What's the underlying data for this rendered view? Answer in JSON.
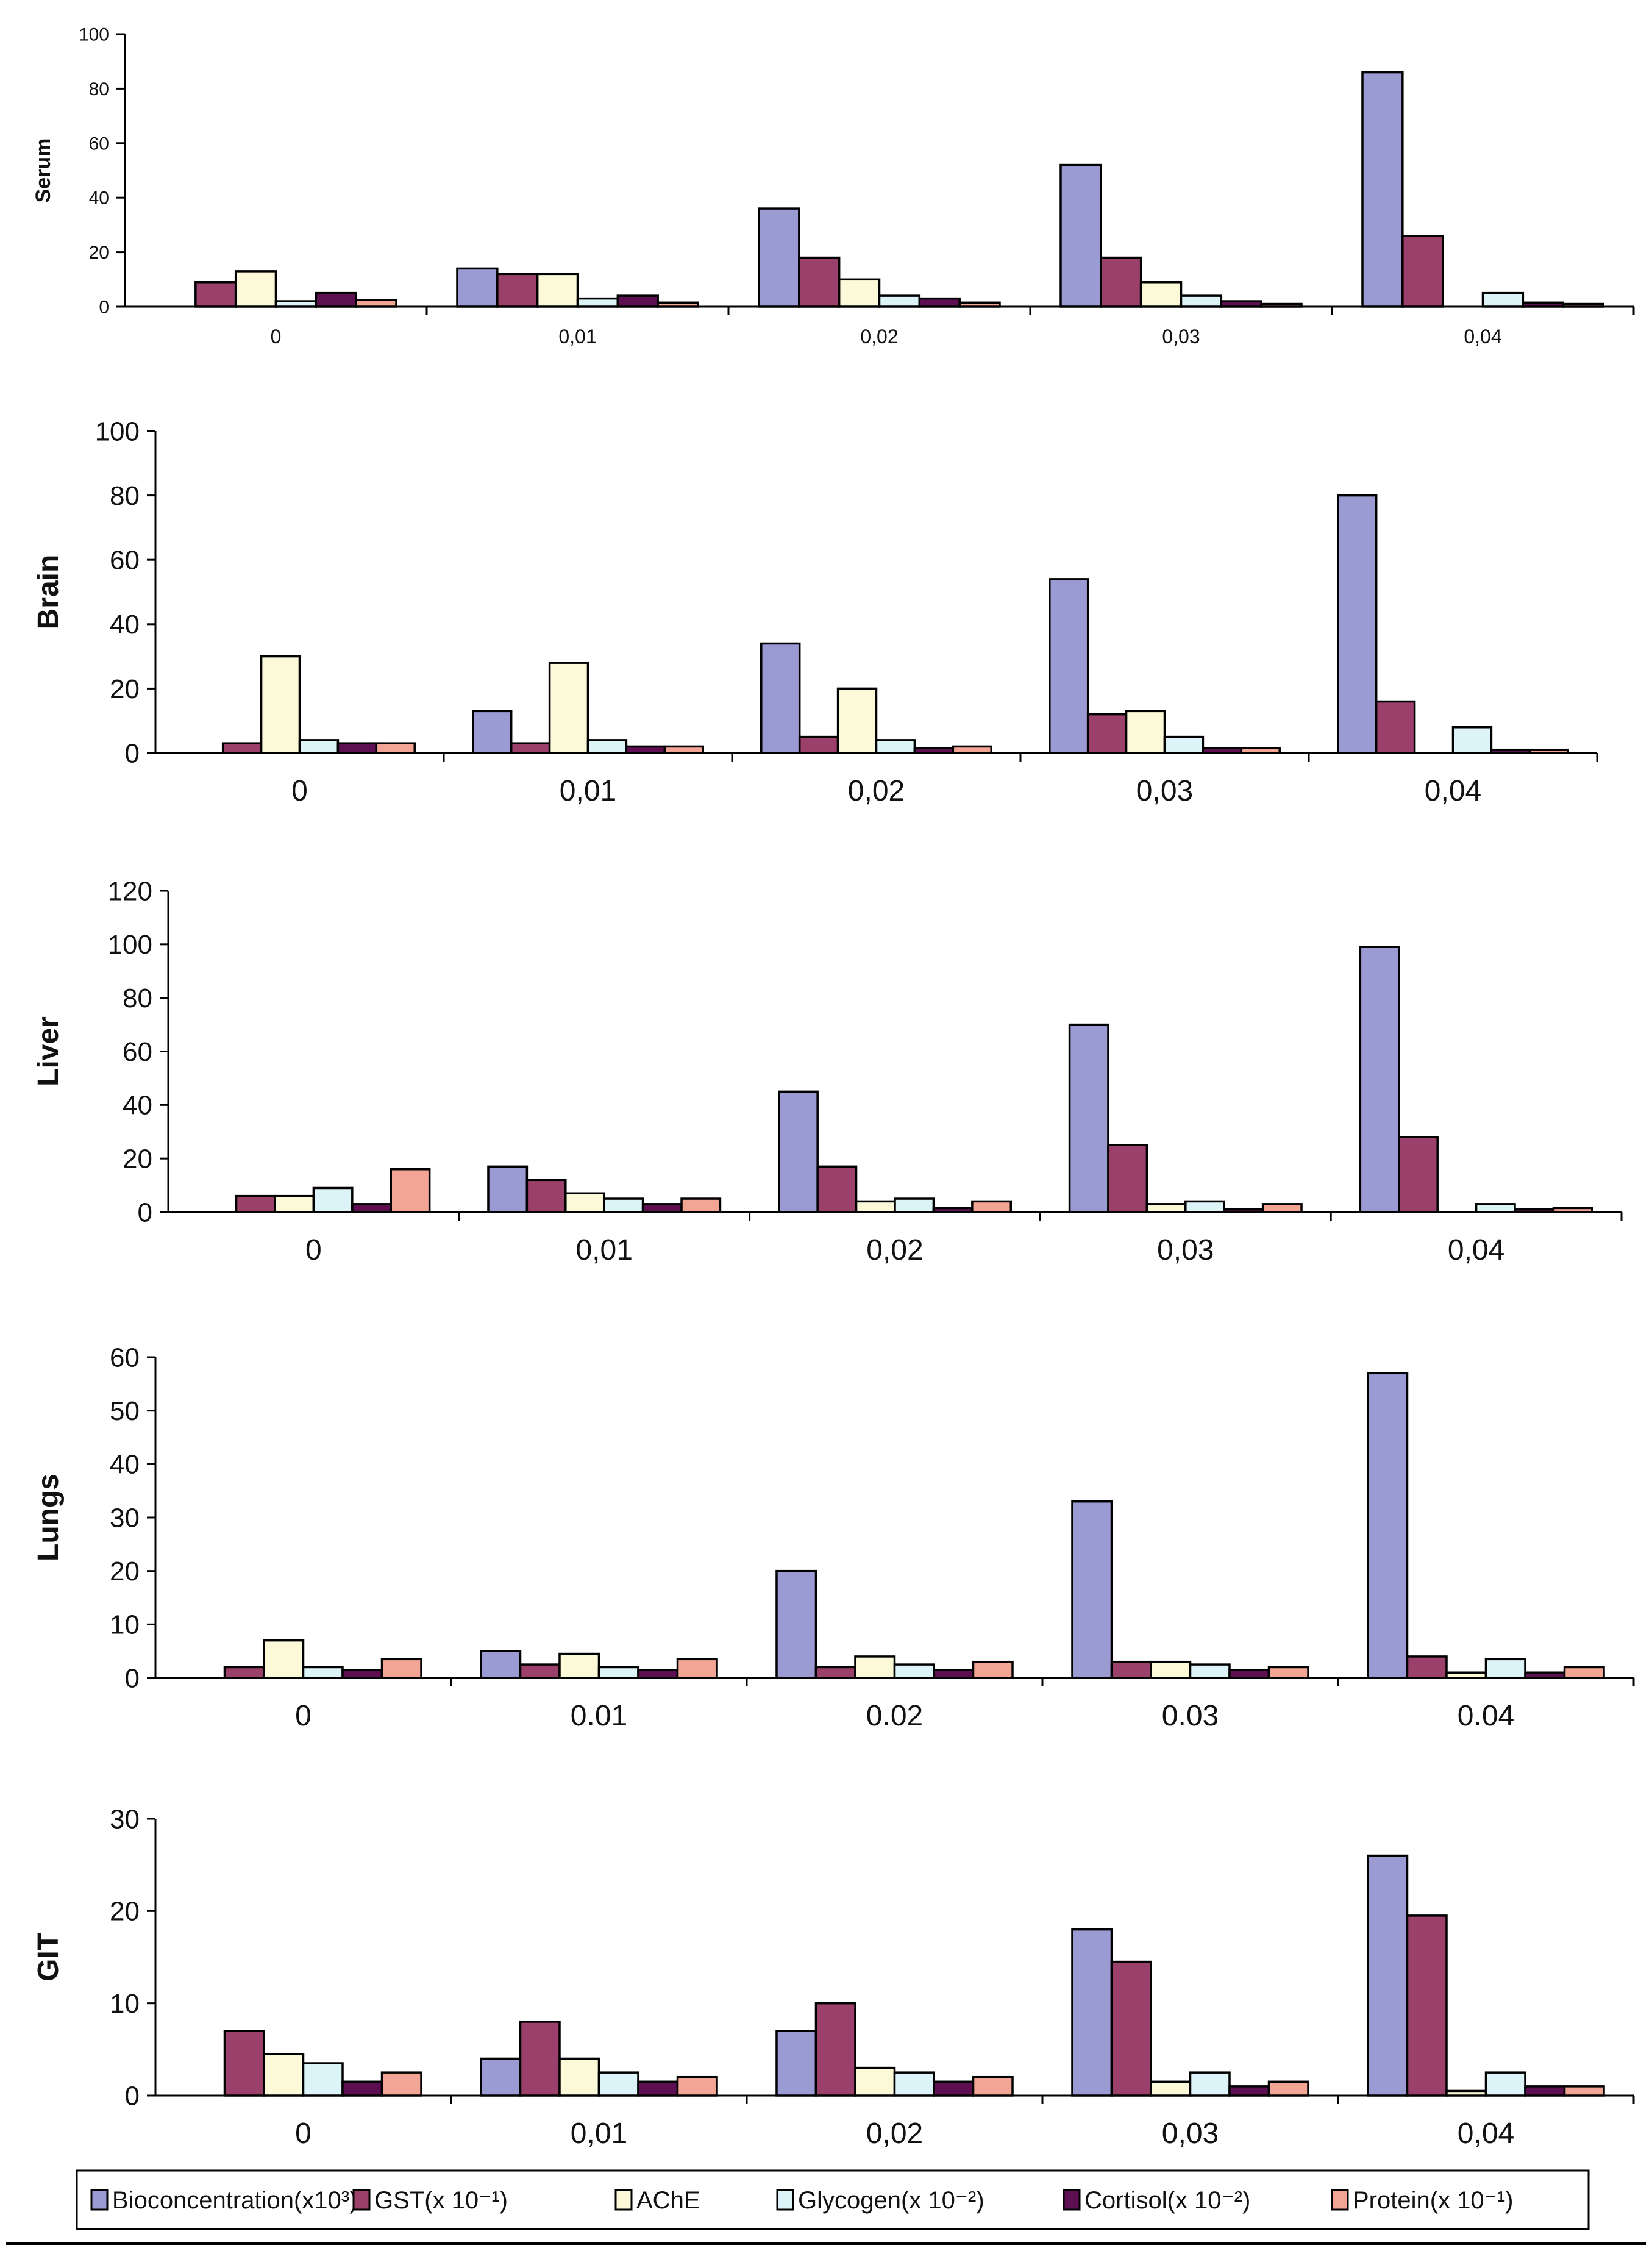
{
  "legend": [
    {
      "key": "bio",
      "label": "Bioconcentration(x10³)",
      "color": "#9a9bd3"
    },
    {
      "key": "gst",
      "label": "GST(x 10⁻¹)",
      "color": "#9b3f6b"
    },
    {
      "key": "ache",
      "label": "AChE",
      "color": "#fbf9d7"
    },
    {
      "key": "glyc",
      "label": "Glycogen(x 10⁻²)",
      "color": "#dcf3f8"
    },
    {
      "key": "cort",
      "label": "Cortisol(x 10⁻²)",
      "color": "#5e0f52"
    },
    {
      "key": "prot",
      "label": "Protein(x 10⁻¹)",
      "color": "#f3a595"
    }
  ],
  "chart_data": [
    {
      "type": "bar",
      "ylabel": "Serum",
      "categories": [
        "0",
        "0,01",
        "0,02",
        "0,03",
        "0,04"
      ],
      "yticks": [
        "0",
        "20",
        "40",
        "60",
        "80",
        "100"
      ],
      "ylim": [
        0,
        100
      ],
      "series": [
        {
          "name": "Bioconcentration(x10³)",
          "values": [
            0,
            14,
            36,
            52,
            86
          ]
        },
        {
          "name": "GST(x 10⁻¹)",
          "values": [
            9,
            12,
            18,
            18,
            26
          ]
        },
        {
          "name": "AChE",
          "values": [
            13,
            12,
            10,
            9,
            0
          ]
        },
        {
          "name": "Glycogen(x 10⁻²)",
          "values": [
            2,
            3,
            4,
            4,
            5
          ]
        },
        {
          "name": "Cortisol(x 10⁻²)",
          "values": [
            5,
            4,
            3,
            2,
            1.5
          ]
        },
        {
          "name": "Protein(x 10⁻¹)",
          "values": [
            2.5,
            1.5,
            1.5,
            1,
            1
          ]
        }
      ]
    },
    {
      "type": "bar",
      "ylabel": "Brain",
      "categories": [
        "0",
        "0,01",
        "0,02",
        "0,03",
        "0,04"
      ],
      "yticks": [
        "0",
        "20",
        "40",
        "60",
        "80",
        "100"
      ],
      "ylim": [
        0,
        100
      ],
      "series": [
        {
          "name": "Bioconcentration(x10³)",
          "values": [
            0,
            13,
            34,
            54,
            80
          ]
        },
        {
          "name": "GST(x 10⁻¹)",
          "values": [
            3,
            3,
            5,
            12,
            16
          ]
        },
        {
          "name": "AChE",
          "values": [
            30,
            28,
            20,
            13,
            0
          ]
        },
        {
          "name": "Glycogen(x 10⁻²)",
          "values": [
            4,
            4,
            4,
            5,
            8
          ]
        },
        {
          "name": "Cortisol(x 10⁻²)",
          "values": [
            3,
            2,
            1.5,
            1.5,
            1
          ]
        },
        {
          "name": "Protein(x 10⁻¹)",
          "values": [
            3,
            2,
            2,
            1.5,
            1
          ]
        }
      ]
    },
    {
      "type": "bar",
      "ylabel": "Liver",
      "categories": [
        "0",
        "0,01",
        "0,02",
        "0,03",
        "0,04"
      ],
      "yticks": [
        "0",
        "20",
        "40",
        "60",
        "80",
        "100",
        "120"
      ],
      "ylim": [
        0,
        120
      ],
      "series": [
        {
          "name": "Bioconcentration(x10³)",
          "values": [
            0,
            17,
            45,
            70,
            99
          ]
        },
        {
          "name": "GST(x 10⁻¹)",
          "values": [
            6,
            12,
            17,
            25,
            28
          ]
        },
        {
          "name": "AChE",
          "values": [
            6,
            7,
            4,
            3,
            0
          ]
        },
        {
          "name": "Glycogen(x 10⁻²)",
          "values": [
            9,
            5,
            5,
            4,
            3
          ]
        },
        {
          "name": "Cortisol(x 10⁻²)",
          "values": [
            3,
            3,
            1.5,
            1,
            1
          ]
        },
        {
          "name": "Protein(x 10⁻¹)",
          "values": [
            16,
            5,
            4,
            3,
            1.5
          ]
        }
      ]
    },
    {
      "type": "bar",
      "ylabel": "Lungs",
      "categories": [
        "0",
        "0.01",
        "0.02",
        "0.03",
        "0.04"
      ],
      "yticks": [
        "0",
        "10",
        "20",
        "30",
        "40",
        "50",
        "60"
      ],
      "ylim": [
        0,
        60
      ],
      "series": [
        {
          "name": "Bioconcentration(x10³)",
          "values": [
            0,
            5,
            20,
            33,
            57
          ]
        },
        {
          "name": "GST(x 10⁻¹)",
          "values": [
            2,
            2.5,
            2,
            3,
            4
          ]
        },
        {
          "name": "AChE",
          "values": [
            7,
            4.5,
            4,
            3,
            1
          ]
        },
        {
          "name": "Glycogen(x 10⁻²)",
          "values": [
            2,
            2,
            2.5,
            2.5,
            3.5
          ]
        },
        {
          "name": "Cortisol(x 10⁻²)",
          "values": [
            1.5,
            1.5,
            1.5,
            1.5,
            1
          ]
        },
        {
          "name": "Protein(x 10⁻¹)",
          "values": [
            3.5,
            3.5,
            3,
            2,
            2
          ]
        }
      ]
    },
    {
      "type": "bar",
      "ylabel": "GIT",
      "categories": [
        "0",
        "0,01",
        "0,02",
        "0,03",
        "0,04"
      ],
      "yticks": [
        "0",
        "10",
        "20",
        "30"
      ],
      "ylim": [
        0,
        30
      ],
      "series": [
        {
          "name": "Bioconcentration(x10³)",
          "values": [
            0,
            4,
            7,
            18,
            26
          ]
        },
        {
          "name": "GST(x 10⁻¹)",
          "values": [
            7,
            8,
            10,
            14.5,
            19.5
          ]
        },
        {
          "name": "AChE",
          "values": [
            4.5,
            4,
            3,
            1.5,
            0.5
          ]
        },
        {
          "name": "Glycogen(x 10⁻²)",
          "values": [
            3.5,
            2.5,
            2.5,
            2.5,
            2.5
          ]
        },
        {
          "name": "Cortisol(x 10⁻²)",
          "values": [
            1.5,
            1.5,
            1.5,
            1,
            1
          ]
        },
        {
          "name": "Protein(x 10⁻¹)",
          "values": [
            2.5,
            2,
            2,
            1.5,
            1
          ]
        }
      ]
    }
  ]
}
